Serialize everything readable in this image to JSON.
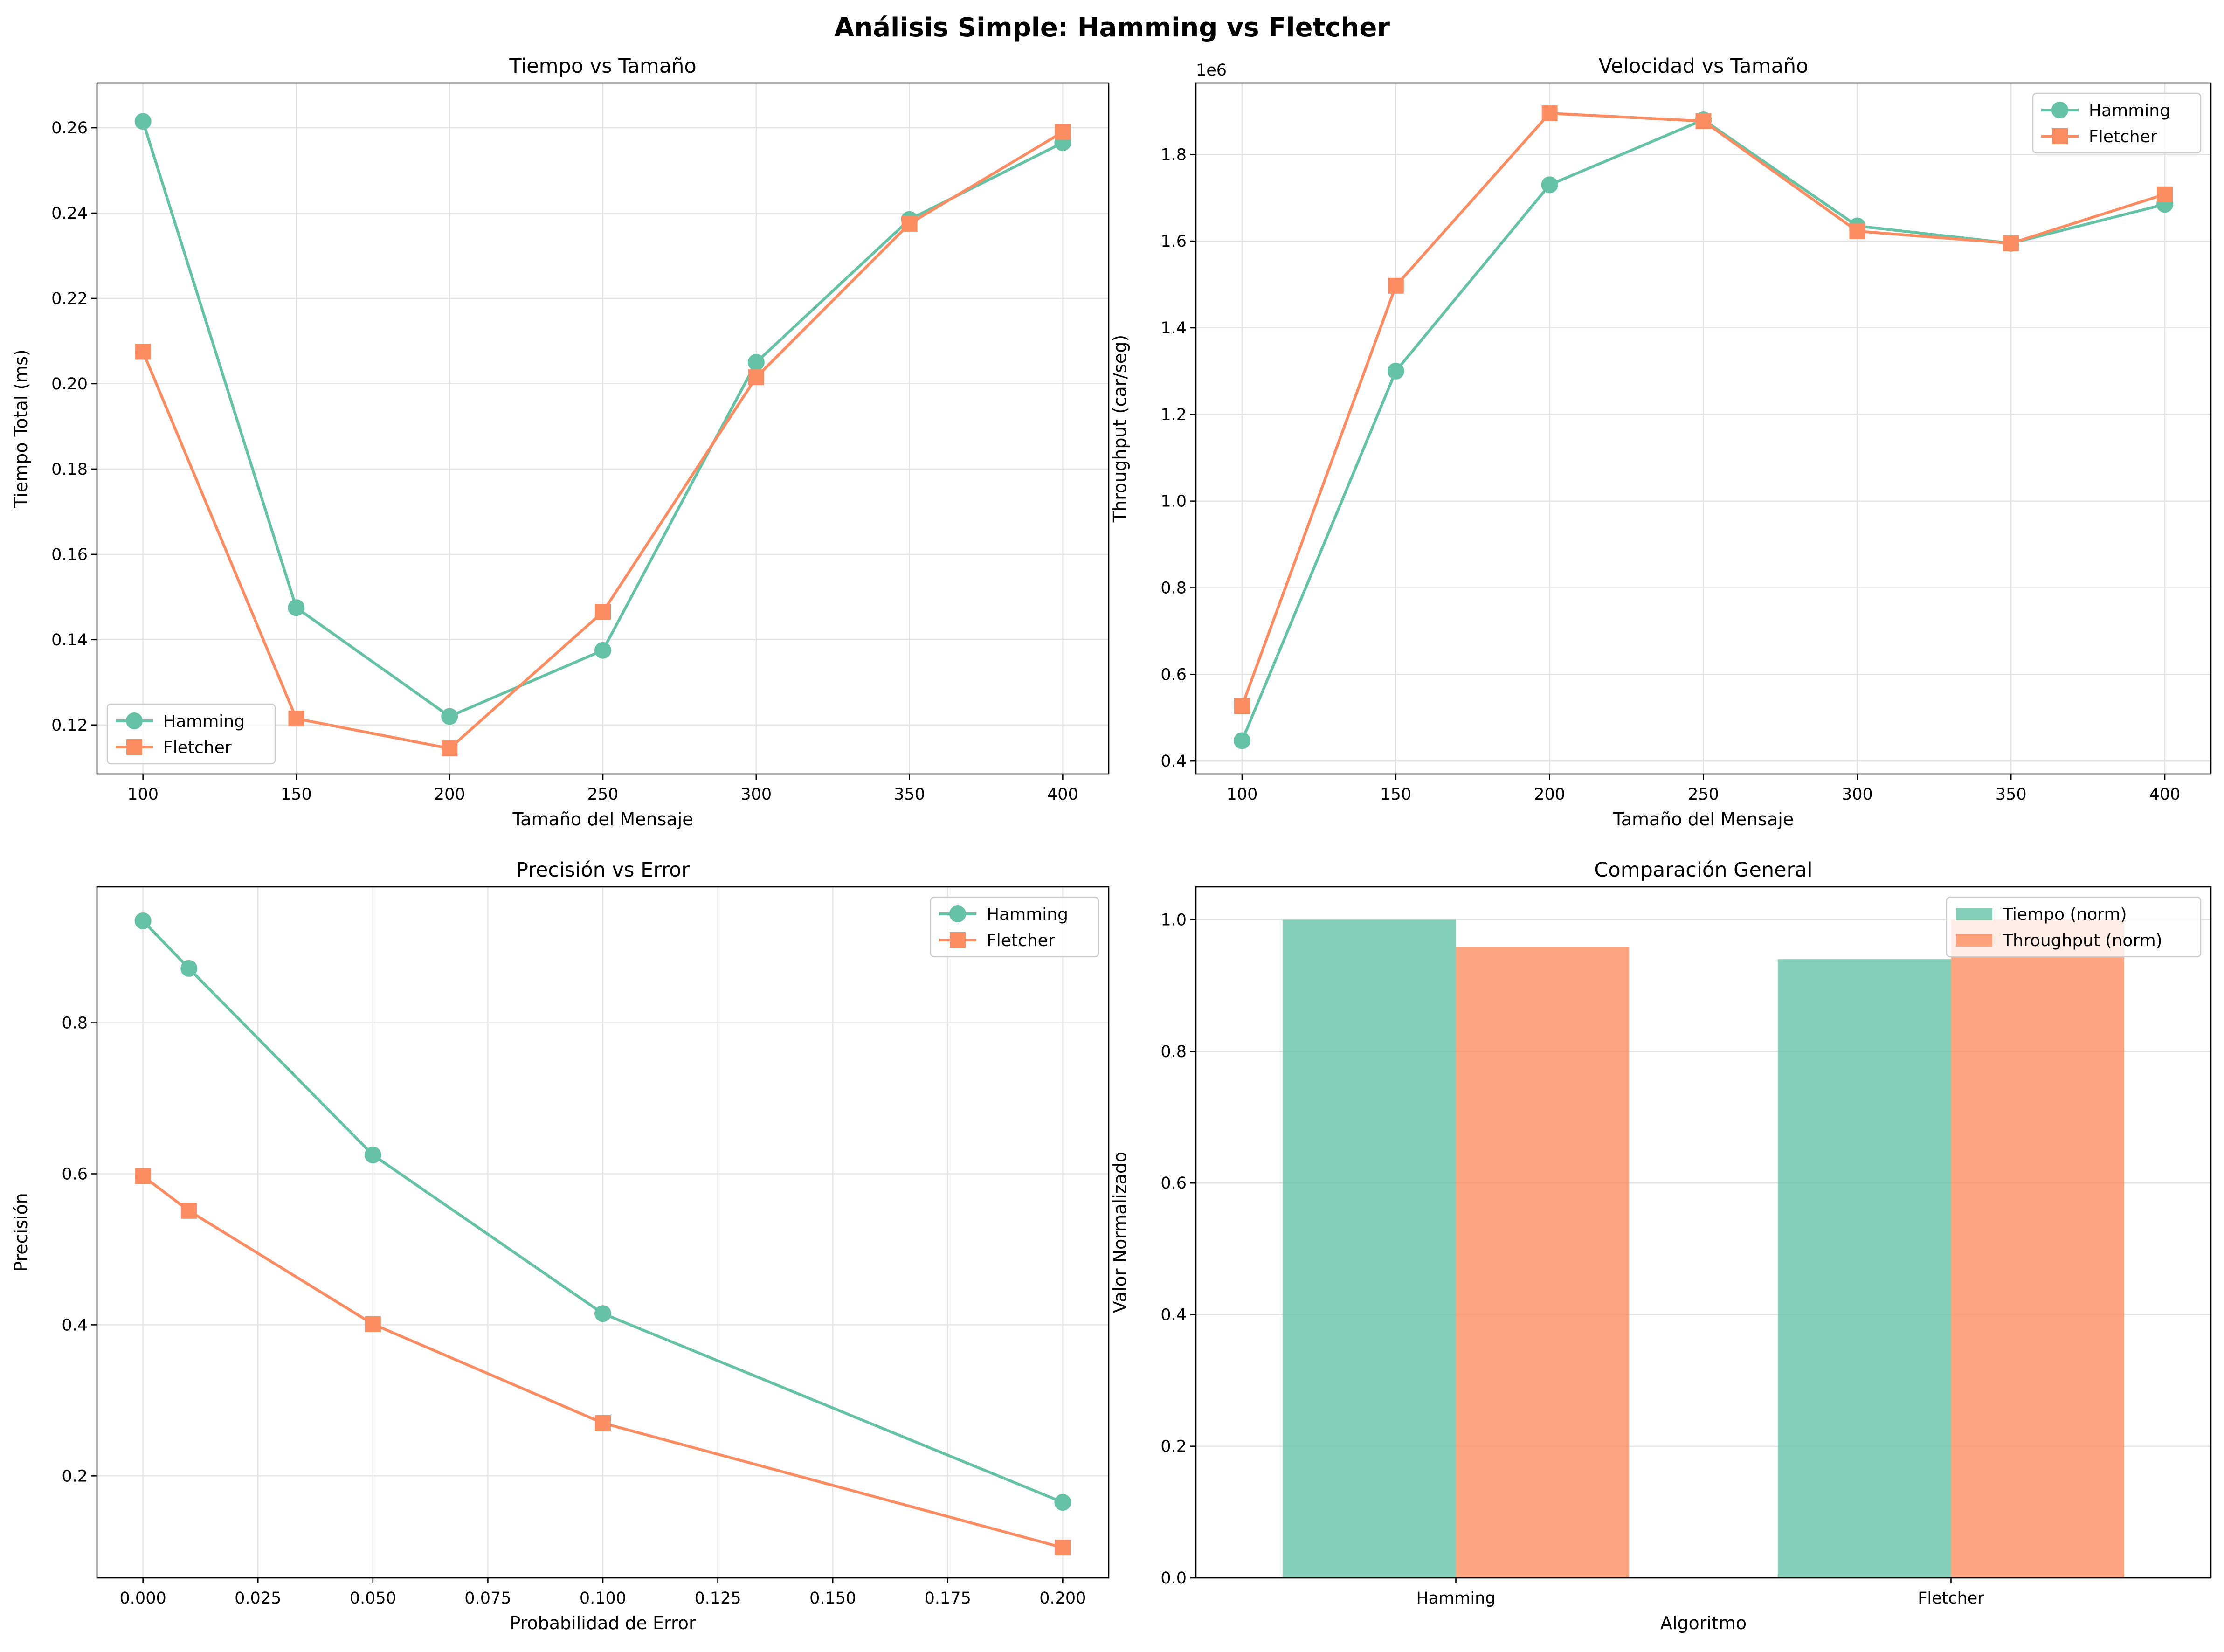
{
  "figure_title": "Análisis Simple: Hamming vs Fletcher",
  "colors": {
    "hamming": "#66c2a5",
    "fletcher": "#fc8d62"
  },
  "chart_data": [
    {
      "type": "line",
      "title": "Tiempo vs Tamaño",
      "xlabel": "Tamaño del Mensaje",
      "ylabel": "Tiempo Total (ms)",
      "x": [
        100,
        150,
        200,
        250,
        300,
        350,
        400
      ],
      "xlim": [
        85,
        415
      ],
      "ylim": [
        0.1085,
        0.2705
      ],
      "xticks": [
        100,
        150,
        200,
        250,
        300,
        350,
        400
      ],
      "yticks": [
        0.12,
        0.14,
        0.16,
        0.18,
        0.2,
        0.22,
        0.24,
        0.26
      ],
      "tick_decimals": 2,
      "grid": true,
      "legend_position": "lower-left",
      "series": [
        {
          "name": "Hamming",
          "marker": "circle",
          "values": [
            0.2615,
            0.1475,
            0.122,
            0.1375,
            0.205,
            0.2385,
            0.2565
          ]
        },
        {
          "name": "Fletcher",
          "marker": "square",
          "values": [
            0.2075,
            0.1215,
            0.1145,
            0.1465,
            0.2015,
            0.2375,
            0.259
          ]
        }
      ]
    },
    {
      "type": "line",
      "title": "Velocidad vs Tamaño",
      "xlabel": "Tamaño del Mensaje",
      "ylabel": "Throughput (car/seg)",
      "scale_label": "1e6",
      "x": [
        100,
        150,
        200,
        250,
        300,
        350,
        400
      ],
      "xlim": [
        85,
        415
      ],
      "ylim": [
        0.37,
        1.965
      ],
      "xticks": [
        100,
        150,
        200,
        250,
        300,
        350,
        400
      ],
      "yticks": [
        0.4,
        0.6,
        0.8,
        1.0,
        1.2,
        1.4,
        1.6,
        1.8
      ],
      "tick_decimals": 1,
      "grid": true,
      "legend_position": "upper-right",
      "series": [
        {
          "name": "Hamming",
          "marker": "circle",
          "values": [
            0.447,
            1.3,
            1.73,
            1.88,
            1.635,
            1.595,
            1.685
          ]
        },
        {
          "name": "Fletcher",
          "marker": "square",
          "values": [
            0.527,
            1.497,
            1.895,
            1.877,
            1.623,
            1.595,
            1.708
          ]
        }
      ]
    },
    {
      "type": "line",
      "title": "Precisión vs Error",
      "xlabel": "Probabilidad de Error",
      "ylabel": "Precisión",
      "x": [
        0.0,
        0.01,
        0.05,
        0.1,
        0.2
      ],
      "xlim": [
        -0.01,
        0.21
      ],
      "ylim": [
        0.065,
        0.98
      ],
      "xticks": [
        0.0,
        0.025,
        0.05,
        0.075,
        0.1,
        0.125,
        0.15,
        0.175,
        0.2
      ],
      "yticks": [
        0.2,
        0.4,
        0.6,
        0.8
      ],
      "xtick_decimals": 3,
      "tick_decimals": 1,
      "grid": true,
      "legend_position": "upper-right",
      "series": [
        {
          "name": "Hamming",
          "marker": "circle",
          "values": [
            0.935,
            0.872,
            0.625,
            0.415,
            0.165
          ]
        },
        {
          "name": "Fletcher",
          "marker": "square",
          "values": [
            0.597,
            0.551,
            0.401,
            0.27,
            0.105
          ]
        }
      ]
    },
    {
      "type": "bar",
      "title": "Comparación General",
      "xlabel": "Algoritmo",
      "ylabel": "Valor Normalizado",
      "categories": [
        "Hamming",
        "Fletcher"
      ],
      "ylim": [
        0,
        1.05
      ],
      "yticks": [
        0.0,
        0.2,
        0.4,
        0.6,
        0.8,
        1.0
      ],
      "tick_decimals": 1,
      "grid": true,
      "legend_position": "upper-right",
      "series": [
        {
          "name": "Tiempo (norm)",
          "values": [
            1.0,
            0.94
          ]
        },
        {
          "name": "Throughput (norm)",
          "values": [
            0.958,
            1.0
          ]
        }
      ]
    }
  ]
}
